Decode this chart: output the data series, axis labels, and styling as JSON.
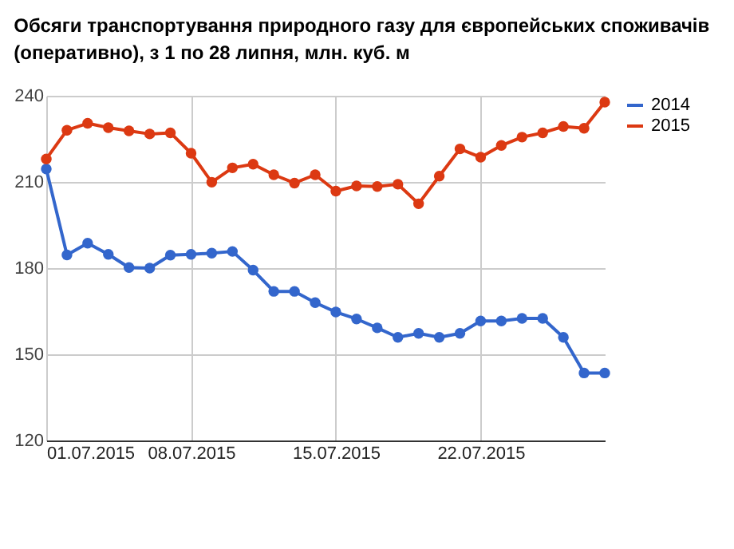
{
  "chart_data": {
    "type": "line",
    "title": "Обсяги транспортування природного газу для європейських споживачів (оперативно), з 1 по 28 липня, млн. куб. м",
    "x": [
      "2015-07-01",
      "2015-07-02",
      "2015-07-03",
      "2015-07-04",
      "2015-07-05",
      "2015-07-06",
      "2015-07-07",
      "2015-07-08",
      "2015-07-09",
      "2015-07-10",
      "2015-07-11",
      "2015-07-12",
      "2015-07-13",
      "2015-07-14",
      "2015-07-15",
      "2015-07-16",
      "2015-07-17",
      "2015-07-18",
      "2015-07-19",
      "2015-07-20",
      "2015-07-21",
      "2015-07-22",
      "2015-07-23",
      "2015-07-24",
      "2015-07-25",
      "2015-07-26",
      "2015-07-27",
      "2015-07-28"
    ],
    "series": [
      {
        "name": "2014",
        "color": "#3366cc",
        "values": [
          214.5,
          184.6,
          188.7,
          184.8,
          180.2,
          180,
          184.5,
          184.8,
          185.2,
          185.8,
          179.3,
          171.9,
          171.9,
          168,
          164.7,
          162.3,
          159.2,
          155.9,
          157.3,
          155.9,
          157.3,
          161.6,
          161.6,
          162.5,
          162.5,
          155.9,
          143.5,
          143.5
        ]
      },
      {
        "name": "2015",
        "color": "#dc3912",
        "values": [
          218,
          228,
          230.4,
          228.9,
          227.8,
          226.7,
          227.1,
          220,
          209.9,
          214.9,
          216.2,
          212.5,
          209.6,
          212.5,
          206.8,
          208.6,
          208.4,
          209.2,
          202.4,
          212,
          221.5,
          218.6,
          222.7,
          225.6,
          227.1,
          229.3,
          228.7,
          237.8
        ]
      }
    ],
    "xlim": [
      "2015-07-01",
      "2015-07-28"
    ],
    "xticks": [
      {
        "value": "2015-07-01",
        "label": "01.07.2015"
      },
      {
        "value": "2015-07-08",
        "label": "08.07.2015"
      },
      {
        "value": "2015-07-15",
        "label": "15.07.2015"
      },
      {
        "value": "2015-07-22",
        "label": "22.07.2015"
      }
    ],
    "ylim": [
      120,
      240
    ],
    "yticks": [
      120,
      150,
      180,
      210,
      240
    ],
    "grid": true,
    "legend": "top right",
    "marker": "circle",
    "line_style": "solid"
  }
}
